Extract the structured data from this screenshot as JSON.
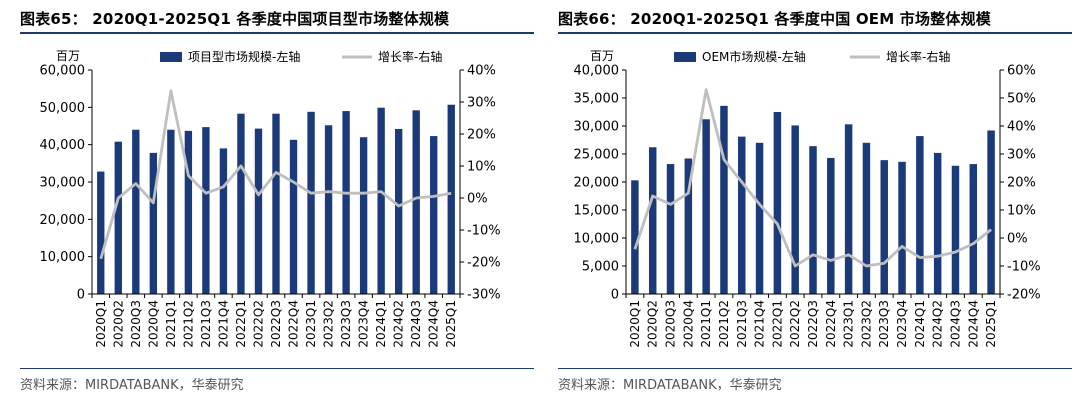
{
  "charts": [
    {
      "title": "图表65： 2020Q1-2025Q1 各季度中国项目型市场整体规模",
      "source": "资料来源：MIRDATABANK，华泰研究",
      "unit_label": "百万",
      "chart_data": {
        "type": "bar",
        "categories": [
          "2020Q1",
          "2020Q2",
          "2020Q3",
          "2020Q4",
          "2021Q1",
          "2021Q2",
          "2021Q3",
          "2021Q4",
          "2022Q1",
          "2022Q2",
          "2022Q3",
          "2022Q4",
          "2023Q1",
          "2023Q2",
          "2023Q3",
          "2023Q4",
          "2024Q1",
          "2024Q2",
          "2024Q3",
          "2024Q4",
          "2025Q1"
        ],
        "series": [
          {
            "name": "项目型市场规模-左轴",
            "type": "bar",
            "axis": "left",
            "values": [
              32800,
              40800,
              44000,
              37800,
              44000,
              43700,
              44700,
              39000,
              48300,
              44300,
              48300,
              41300,
              48800,
              45200,
              49000,
              42000,
              49900,
              44200,
              49200,
              42300,
              50700
            ]
          },
          {
            "name": "增长率-右轴",
            "type": "line",
            "axis": "right",
            "values": [
              -19,
              0,
              4.5,
              -1.5,
              33.5,
              7,
              1.5,
              3.5,
              10,
              1,
              8,
              5,
              1.5,
              2,
              1.5,
              1.5,
              2,
              -2.5,
              0,
              0.5,
              1.5
            ]
          }
        ],
        "left_axis": {
          "min": 0,
          "max": 60000,
          "ticks": [
            0,
            10000,
            20000,
            30000,
            40000,
            50000,
            60000
          ],
          "tick_labels": [
            "0",
            "10,000",
            "20,000",
            "30,000",
            "40,000",
            "50,000",
            "60,000"
          ]
        },
        "right_axis": {
          "min": -30,
          "max": 40,
          "ticks": [
            -30,
            -20,
            -10,
            0,
            10,
            20,
            30,
            40
          ],
          "tick_labels": [
            "-30%",
            "-20%",
            "-10%",
            "0%",
            "10%",
            "20%",
            "30%",
            "40%"
          ]
        },
        "legend": "top",
        "grid": false
      }
    },
    {
      "title": "图表66： 2020Q1-2025Q1 各季度中国 OEM 市场整体规模",
      "source": "资料来源：MIRDATABANK，华泰研究",
      "unit_label": "百万",
      "chart_data": {
        "type": "bar",
        "categories": [
          "2020Q1",
          "2020Q2",
          "2020Q3",
          "2020Q4",
          "2021Q1",
          "2021Q2",
          "2021Q3",
          "2021Q4",
          "2022Q1",
          "2022Q2",
          "2022Q3",
          "2022Q4",
          "2023Q1",
          "2023Q2",
          "2023Q3",
          "2023Q4",
          "2024Q1",
          "2024Q2",
          "2024Q3",
          "2024Q4",
          "2025Q1"
        ],
        "series": [
          {
            "name": "OEM市场规模-左轴",
            "type": "bar",
            "axis": "left",
            "values": [
              20300,
              26200,
              23200,
              24200,
              31200,
              33600,
              28100,
              27000,
              32500,
              30100,
              26400,
              24300,
              30300,
              27000,
              23900,
              23600,
              28200,
              25200,
              22900,
              23200,
              29200
            ]
          },
          {
            "name": "增长率-右轴",
            "type": "line",
            "axis": "right",
            "values": [
              -4,
              15,
              12,
              16,
              53,
              28,
              20,
              12,
              5,
              -10,
              -6,
              -8,
              -6,
              -10,
              -9,
              -3,
              -7,
              -6.5,
              -5,
              -2,
              3
            ]
          }
        ],
        "left_axis": {
          "min": 0,
          "max": 40000,
          "ticks": [
            0,
            5000,
            10000,
            15000,
            20000,
            25000,
            30000,
            35000,
            40000
          ],
          "tick_labels": [
            "0",
            "5,000",
            "10,000",
            "15,000",
            "20,000",
            "25,000",
            "30,000",
            "35,000",
            "40,000"
          ]
        },
        "right_axis": {
          "min": -20,
          "max": 60,
          "ticks": [
            -20,
            -10,
            0,
            10,
            20,
            30,
            40,
            50,
            60
          ],
          "tick_labels": [
            "-20%",
            "-10%",
            "0%",
            "10%",
            "20%",
            "30%",
            "40%",
            "50%",
            "60%"
          ]
        },
        "legend": "top",
        "grid": false
      }
    }
  ],
  "colors": {
    "bar": "#1b3a7a",
    "line": "#bfbfbf",
    "axis": "#000000",
    "rule": "#1f3a6e"
  }
}
